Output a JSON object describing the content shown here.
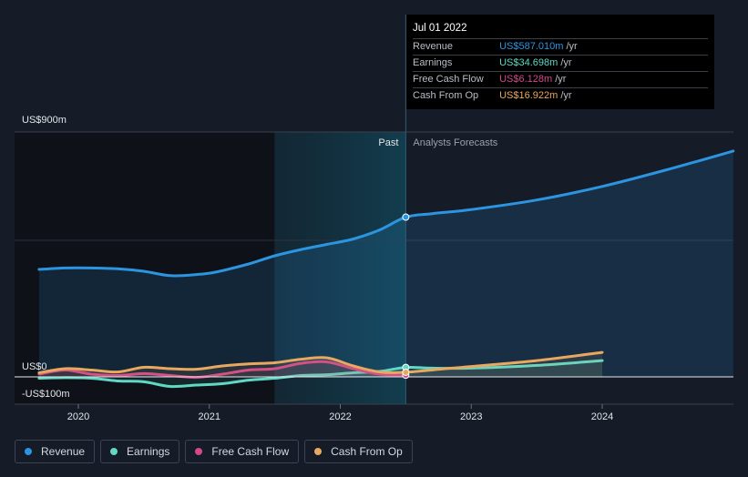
{
  "chart_data": {
    "type": "area",
    "y_labels": {
      "top": "US$900m",
      "zero": "US$0",
      "bottom": "-US$100m"
    },
    "ylim": [
      -100,
      900
    ],
    "x_ticks": [
      {
        "label": "2020",
        "x": 2020.0
      },
      {
        "label": "2021",
        "x": 2021.0
      },
      {
        "label": "2022",
        "x": 2022.0
      },
      {
        "label": "2023",
        "x": 2023.0
      },
      {
        "label": "2024",
        "x": 2024.0
      }
    ],
    "xlim": [
      2019.55,
      2025.0
    ],
    "past_label": "Past",
    "forecast_label": "Analysts Forecasts",
    "divider_x": 2022.5,
    "shade_start_x": 2021.5,
    "series": [
      {
        "name": "Revenue",
        "color": "#2d94e0",
        "fill": true,
        "points": [
          [
            2019.7,
            395
          ],
          [
            2019.9,
            400
          ],
          [
            2020.1,
            400
          ],
          [
            2020.3,
            397
          ],
          [
            2020.5,
            388
          ],
          [
            2020.7,
            372
          ],
          [
            2020.9,
            376
          ],
          [
            2021.05,
            385
          ],
          [
            2021.3,
            415
          ],
          [
            2021.5,
            445
          ],
          [
            2021.7,
            468
          ],
          [
            2021.9,
            487
          ],
          [
            2022.1,
            507
          ],
          [
            2022.3,
            540
          ],
          [
            2022.5,
            587
          ],
          [
            2022.7,
            600
          ],
          [
            2023.0,
            615
          ],
          [
            2023.5,
            650
          ],
          [
            2024.0,
            700
          ],
          [
            2024.5,
            762
          ],
          [
            2025.0,
            830
          ]
        ]
      },
      {
        "name": "Earnings",
        "color": "#5fd8c4",
        "fill": false,
        "points": [
          [
            2019.7,
            -5
          ],
          [
            2019.9,
            -3
          ],
          [
            2020.1,
            -5
          ],
          [
            2020.3,
            -15
          ],
          [
            2020.5,
            -18
          ],
          [
            2020.7,
            -35
          ],
          [
            2020.9,
            -30
          ],
          [
            2021.1,
            -25
          ],
          [
            2021.3,
            -12
          ],
          [
            2021.5,
            -5
          ],
          [
            2021.7,
            5
          ],
          [
            2021.9,
            8
          ],
          [
            2022.1,
            15
          ],
          [
            2022.3,
            20
          ],
          [
            2022.5,
            34.698
          ],
          [
            2022.7,
            32
          ],
          [
            2023.0,
            32
          ],
          [
            2023.5,
            42
          ],
          [
            2024.0,
            60
          ]
        ]
      },
      {
        "name": "Free Cash Flow",
        "color": "#d0498a",
        "fill": false,
        "points": [
          [
            2019.7,
            10
          ],
          [
            2019.9,
            25
          ],
          [
            2020.1,
            10
          ],
          [
            2020.3,
            5
          ],
          [
            2020.5,
            12
          ],
          [
            2020.7,
            5
          ],
          [
            2020.9,
            -2
          ],
          [
            2021.1,
            10
          ],
          [
            2021.3,
            25
          ],
          [
            2021.5,
            30
          ],
          [
            2021.7,
            50
          ],
          [
            2021.9,
            55
          ],
          [
            2022.1,
            30
          ],
          [
            2022.3,
            10
          ],
          [
            2022.5,
            6.128
          ]
        ]
      },
      {
        "name": "Cash From Op",
        "color": "#e8a860",
        "fill": false,
        "points": [
          [
            2019.7,
            15
          ],
          [
            2019.9,
            30
          ],
          [
            2020.1,
            25
          ],
          [
            2020.3,
            18
          ],
          [
            2020.5,
            35
          ],
          [
            2020.7,
            30
          ],
          [
            2020.9,
            28
          ],
          [
            2021.1,
            40
          ],
          [
            2021.3,
            48
          ],
          [
            2021.5,
            52
          ],
          [
            2021.7,
            65
          ],
          [
            2021.9,
            70
          ],
          [
            2022.1,
            40
          ],
          [
            2022.3,
            18
          ],
          [
            2022.5,
            16.922
          ],
          [
            2022.8,
            30
          ],
          [
            2023.0,
            38
          ],
          [
            2023.5,
            60
          ],
          [
            2024.0,
            90
          ]
        ]
      }
    ]
  },
  "tooltip": {
    "date": "Jul 01 2022",
    "rows": [
      {
        "label": "Revenue",
        "value": "US$587.010m",
        "unit": "/yr",
        "color": "#2d94e0"
      },
      {
        "label": "Earnings",
        "value": "US$34.698m",
        "unit": "/yr",
        "color": "#5fd8c4"
      },
      {
        "label": "Free Cash Flow",
        "value": "US$6.128m",
        "unit": "/yr",
        "color": "#d0498a"
      },
      {
        "label": "Cash From Op",
        "value": "US$16.922m",
        "unit": "/yr",
        "color": "#e8a860"
      }
    ]
  },
  "legend": [
    {
      "label": "Revenue",
      "color": "#2d94e0"
    },
    {
      "label": "Earnings",
      "color": "#5fd8c4"
    },
    {
      "label": "Free Cash Flow",
      "color": "#d0498a"
    },
    {
      "label": "Cash From Op",
      "color": "#e8a860"
    }
  ]
}
